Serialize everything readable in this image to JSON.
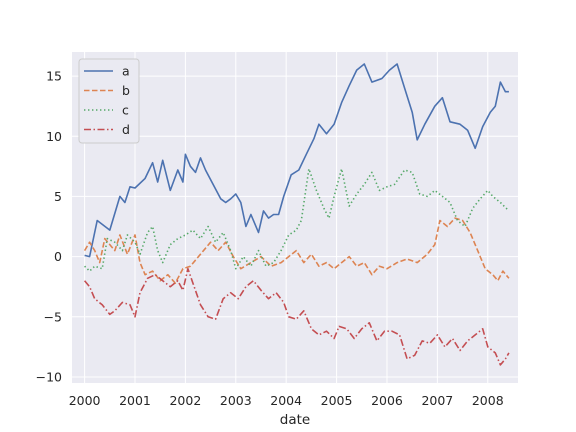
{
  "chart_data": {
    "type": "line",
    "xlabel": "date",
    "ylabel": "",
    "xlim": [
      1999.75,
      2008.6
    ],
    "ylim": [
      -10.5,
      17
    ],
    "x_ticks": [
      {
        "value": 2000,
        "label": "2000"
      },
      {
        "value": 2001,
        "label": "2001"
      },
      {
        "value": 2002,
        "label": "2002"
      },
      {
        "value": 2003,
        "label": "2003"
      },
      {
        "value": 2004,
        "label": "2004"
      },
      {
        "value": 2005,
        "label": "2005"
      },
      {
        "value": 2006,
        "label": "2006"
      },
      {
        "value": 2007,
        "label": "2007"
      },
      {
        "value": 2008,
        "label": "2008"
      }
    ],
    "y_ticks": [
      {
        "value": -10,
        "label": "−10"
      },
      {
        "value": -5,
        "label": "−5"
      },
      {
        "value": 0,
        "label": "0"
      },
      {
        "value": 5,
        "label": "5"
      },
      {
        "value": 10,
        "label": "10"
      },
      {
        "value": 15,
        "label": "15"
      }
    ],
    "grid": true,
    "legend_position": "upper-left",
    "series": [
      {
        "name": "a",
        "color": "#4c72b0",
        "style": "solid",
        "points": [
          [
            2000.0,
            0.1
          ],
          [
            2000.1,
            0.0
          ],
          [
            2000.25,
            3.0
          ],
          [
            2000.5,
            2.2
          ],
          [
            2000.7,
            5.0
          ],
          [
            2000.8,
            4.5
          ],
          [
            2000.9,
            5.8
          ],
          [
            2001.0,
            5.7
          ],
          [
            2001.2,
            6.5
          ],
          [
            2001.35,
            7.8
          ],
          [
            2001.45,
            6.2
          ],
          [
            2001.55,
            8.0
          ],
          [
            2001.7,
            5.5
          ],
          [
            2001.85,
            7.2
          ],
          [
            2001.95,
            6.2
          ],
          [
            2002.0,
            8.5
          ],
          [
            2002.1,
            7.5
          ],
          [
            2002.2,
            7.0
          ],
          [
            2002.3,
            8.2
          ],
          [
            2002.4,
            7.2
          ],
          [
            2002.55,
            6.0
          ],
          [
            2002.7,
            4.8
          ],
          [
            2002.8,
            4.5
          ],
          [
            2002.9,
            4.8
          ],
          [
            2003.0,
            5.2
          ],
          [
            2003.1,
            4.5
          ],
          [
            2003.2,
            2.5
          ],
          [
            2003.3,
            3.5
          ],
          [
            2003.45,
            2.0
          ],
          [
            2003.55,
            3.8
          ],
          [
            2003.65,
            3.2
          ],
          [
            2003.75,
            3.5
          ],
          [
            2003.85,
            3.5
          ],
          [
            2003.95,
            5.0
          ],
          [
            2004.1,
            6.8
          ],
          [
            2004.25,
            7.2
          ],
          [
            2004.4,
            8.5
          ],
          [
            2004.55,
            9.8
          ],
          [
            2004.65,
            11.0
          ],
          [
            2004.8,
            10.2
          ],
          [
            2004.95,
            11.0
          ],
          [
            2005.1,
            12.8
          ],
          [
            2005.25,
            14.2
          ],
          [
            2005.4,
            15.5
          ],
          [
            2005.55,
            16.0
          ],
          [
            2005.7,
            14.5
          ],
          [
            2005.9,
            14.8
          ],
          [
            2006.05,
            15.5
          ],
          [
            2006.2,
            16.0
          ],
          [
            2006.35,
            14.0
          ],
          [
            2006.5,
            12.0
          ],
          [
            2006.6,
            9.7
          ],
          [
            2006.75,
            11.0
          ],
          [
            2006.95,
            12.5
          ],
          [
            2007.1,
            13.2
          ],
          [
            2007.25,
            11.2
          ],
          [
            2007.45,
            11.0
          ],
          [
            2007.6,
            10.5
          ],
          [
            2007.75,
            9.0
          ],
          [
            2007.9,
            10.8
          ],
          [
            2008.05,
            12.0
          ],
          [
            2008.15,
            12.5
          ],
          [
            2008.25,
            14.5
          ],
          [
            2008.35,
            13.7
          ],
          [
            2008.42,
            13.7
          ]
        ]
      },
      {
        "name": "b",
        "color": "#dd8452",
        "style": "dashed",
        "points": [
          [
            2000.0,
            0.5
          ],
          [
            2000.1,
            1.2
          ],
          [
            2000.2,
            0.5
          ],
          [
            2000.3,
            -0.5
          ],
          [
            2000.4,
            1.5
          ],
          [
            2000.5,
            1.0
          ],
          [
            2000.6,
            0.5
          ],
          [
            2000.7,
            1.8
          ],
          [
            2000.85,
            0.2
          ],
          [
            2001.0,
            1.8
          ],
          [
            2001.1,
            -0.5
          ],
          [
            2001.2,
            -1.5
          ],
          [
            2001.35,
            -1.2
          ],
          [
            2001.5,
            -2.0
          ],
          [
            2001.65,
            -1.5
          ],
          [
            2001.8,
            -2.2
          ],
          [
            2001.95,
            -1.0
          ],
          [
            2002.1,
            -0.8
          ],
          [
            2002.3,
            0.2
          ],
          [
            2002.5,
            1.2
          ],
          [
            2002.65,
            0.5
          ],
          [
            2002.8,
            1.2
          ],
          [
            2002.95,
            0.0
          ],
          [
            2003.1,
            -1.0
          ],
          [
            2003.3,
            -0.5
          ],
          [
            2003.5,
            0.0
          ],
          [
            2003.7,
            -0.8
          ],
          [
            2003.9,
            -0.5
          ],
          [
            2004.05,
            0.0
          ],
          [
            2004.2,
            0.5
          ],
          [
            2004.35,
            -0.5
          ],
          [
            2004.5,
            0.2
          ],
          [
            2004.65,
            -0.8
          ],
          [
            2004.8,
            -0.5
          ],
          [
            2004.95,
            -1.0
          ],
          [
            2005.1,
            -0.5
          ],
          [
            2005.25,
            0.0
          ],
          [
            2005.4,
            -0.8
          ],
          [
            2005.55,
            -0.5
          ],
          [
            2005.7,
            -1.5
          ],
          [
            2005.85,
            -0.8
          ],
          [
            2006.0,
            -1.0
          ],
          [
            2006.2,
            -0.5
          ],
          [
            2006.4,
            -0.2
          ],
          [
            2006.6,
            -0.5
          ],
          [
            2006.8,
            0.2
          ],
          [
            2006.95,
            1.0
          ],
          [
            2007.05,
            3.0
          ],
          [
            2007.2,
            2.5
          ],
          [
            2007.35,
            3.2
          ],
          [
            2007.5,
            3.0
          ],
          [
            2007.65,
            2.0
          ],
          [
            2007.8,
            0.5
          ],
          [
            2007.95,
            -1.0
          ],
          [
            2008.1,
            -1.5
          ],
          [
            2008.2,
            -2.0
          ],
          [
            2008.3,
            -1.2
          ],
          [
            2008.42,
            -1.8
          ]
        ]
      },
      {
        "name": "c",
        "color": "#55a868",
        "style": "dotted",
        "points": [
          [
            2000.0,
            -0.8
          ],
          [
            2000.1,
            -1.2
          ],
          [
            2000.2,
            -0.8
          ],
          [
            2000.35,
            -1.0
          ],
          [
            2000.45,
            1.5
          ],
          [
            2000.6,
            1.2
          ],
          [
            2000.75,
            0.5
          ],
          [
            2000.85,
            1.8
          ],
          [
            2001.0,
            1.2
          ],
          [
            2001.1,
            0.2
          ],
          [
            2001.25,
            2.0
          ],
          [
            2001.35,
            2.5
          ],
          [
            2001.45,
            0.5
          ],
          [
            2001.55,
            -0.5
          ],
          [
            2001.7,
            1.0
          ],
          [
            2001.85,
            1.5
          ],
          [
            2002.0,
            1.8
          ],
          [
            2002.15,
            2.2
          ],
          [
            2002.3,
            1.5
          ],
          [
            2002.45,
            2.5
          ],
          [
            2002.6,
            1.2
          ],
          [
            2002.75,
            2.0
          ],
          [
            2002.9,
            0.5
          ],
          [
            2003.0,
            -1.0
          ],
          [
            2003.15,
            0.0
          ],
          [
            2003.3,
            -0.8
          ],
          [
            2003.45,
            0.5
          ],
          [
            2003.6,
            -0.8
          ],
          [
            2003.75,
            -0.5
          ],
          [
            2003.9,
            0.5
          ],
          [
            2004.05,
            1.8
          ],
          [
            2004.2,
            2.2
          ],
          [
            2004.3,
            3.0
          ],
          [
            2004.45,
            7.3
          ],
          [
            2004.6,
            5.5
          ],
          [
            2004.75,
            4.0
          ],
          [
            2004.85,
            3.2
          ],
          [
            2004.95,
            5.0
          ],
          [
            2005.1,
            7.3
          ],
          [
            2005.25,
            4.2
          ],
          [
            2005.4,
            5.2
          ],
          [
            2005.55,
            6.0
          ],
          [
            2005.7,
            7.0
          ],
          [
            2005.85,
            5.5
          ],
          [
            2006.0,
            5.8
          ],
          [
            2006.15,
            6.0
          ],
          [
            2006.35,
            7.2
          ],
          [
            2006.5,
            7.0
          ],
          [
            2006.65,
            5.2
          ],
          [
            2006.8,
            5.0
          ],
          [
            2006.95,
            5.5
          ],
          [
            2007.1,
            5.0
          ],
          [
            2007.25,
            4.5
          ],
          [
            2007.4,
            3.0
          ],
          [
            2007.55,
            2.5
          ],
          [
            2007.7,
            4.0
          ],
          [
            2007.85,
            4.8
          ],
          [
            2008.0,
            5.5
          ],
          [
            2008.1,
            5.0
          ],
          [
            2008.25,
            4.5
          ],
          [
            2008.42,
            3.8
          ]
        ]
      },
      {
        "name": "d",
        "color": "#c44e52",
        "style": "dashdot",
        "points": [
          [
            2000.0,
            -2.0
          ],
          [
            2000.1,
            -2.5
          ],
          [
            2000.2,
            -3.5
          ],
          [
            2000.35,
            -4.0
          ],
          [
            2000.5,
            -4.8
          ],
          [
            2000.6,
            -4.5
          ],
          [
            2000.75,
            -3.8
          ],
          [
            2000.9,
            -4.0
          ],
          [
            2001.0,
            -5.0
          ],
          [
            2001.1,
            -3.0
          ],
          [
            2001.25,
            -1.8
          ],
          [
            2001.4,
            -1.5
          ],
          [
            2001.55,
            -2.0
          ],
          [
            2001.7,
            -2.5
          ],
          [
            2001.85,
            -2.0
          ],
          [
            2001.95,
            -2.8
          ],
          [
            2002.05,
            -1.0
          ],
          [
            2002.15,
            -2.2
          ],
          [
            2002.3,
            -4.0
          ],
          [
            2002.45,
            -5.0
          ],
          [
            2002.6,
            -5.2
          ],
          [
            2002.75,
            -3.5
          ],
          [
            2002.9,
            -3.0
          ],
          [
            2003.05,
            -3.5
          ],
          [
            2003.2,
            -2.5
          ],
          [
            2003.35,
            -2.0
          ],
          [
            2003.5,
            -2.8
          ],
          [
            2003.65,
            -3.5
          ],
          [
            2003.8,
            -3.0
          ],
          [
            2003.95,
            -3.8
          ],
          [
            2004.05,
            -5.0
          ],
          [
            2004.2,
            -5.2
          ],
          [
            2004.35,
            -4.5
          ],
          [
            2004.5,
            -6.0
          ],
          [
            2004.65,
            -6.5
          ],
          [
            2004.8,
            -6.2
          ],
          [
            2004.95,
            -6.8
          ],
          [
            2005.05,
            -5.8
          ],
          [
            2005.2,
            -6.0
          ],
          [
            2005.35,
            -6.8
          ],
          [
            2005.5,
            -6.0
          ],
          [
            2005.65,
            -5.5
          ],
          [
            2005.8,
            -7.0
          ],
          [
            2005.95,
            -6.2
          ],
          [
            2006.1,
            -6.2
          ],
          [
            2006.25,
            -6.5
          ],
          [
            2006.4,
            -8.5
          ],
          [
            2006.55,
            -8.2
          ],
          [
            2006.7,
            -7.0
          ],
          [
            2006.85,
            -7.2
          ],
          [
            2007.0,
            -6.5
          ],
          [
            2007.15,
            -7.5
          ],
          [
            2007.3,
            -6.8
          ],
          [
            2007.45,
            -7.8
          ],
          [
            2007.6,
            -7.0
          ],
          [
            2007.75,
            -6.5
          ],
          [
            2007.9,
            -6.0
          ],
          [
            2008.0,
            -7.5
          ],
          [
            2008.15,
            -8.0
          ],
          [
            2008.25,
            -9.0
          ],
          [
            2008.35,
            -8.5
          ],
          [
            2008.42,
            -8.0
          ]
        ]
      }
    ]
  }
}
